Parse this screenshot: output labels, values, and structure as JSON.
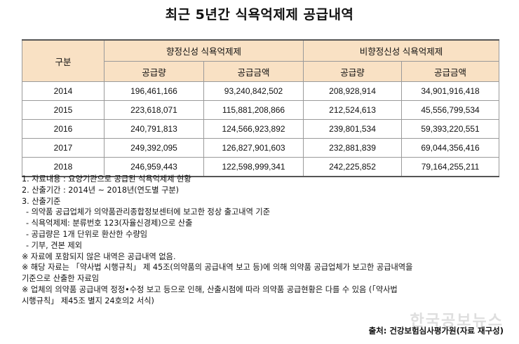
{
  "title": "최근 5년간 식욕억제제 공급내역",
  "table": {
    "col_gubun": "구분",
    "group1": "향정신성 식욕억제제",
    "group2": "비향정신성 식욕억제제",
    "sub_qty": "공급량",
    "sub_amount": "공급금액",
    "rows": [
      {
        "year": "2014",
        "psy_qty": "196,461,166",
        "psy_amt": "93,240,842,502",
        "non_qty": "208,928,914",
        "non_amt": "34,901,916,418"
      },
      {
        "year": "2015",
        "psy_qty": "223,618,071",
        "psy_amt": "115,881,208,866",
        "non_qty": "212,524,613",
        "non_amt": "45,556,799,534"
      },
      {
        "year": "2016",
        "psy_qty": "240,791,813",
        "psy_amt": "124,566,923,892",
        "non_qty": "239,801,534",
        "non_amt": "59,393,220,551"
      },
      {
        "year": "2017",
        "psy_qty": "249,392,095",
        "psy_amt": "126,827,901,603",
        "non_qty": "232,881,839",
        "non_amt": "69,044,356,416"
      },
      {
        "year": "2018",
        "psy_qty": "246,959,443",
        "psy_amt": "122,598,999,341",
        "non_qty": "242,225,852",
        "non_amt": "79,164,255,211"
      }
    ]
  },
  "notes": [
    "1. 자료내용 : 요양기관으로 공급된 식욕억제제 현황",
    "2. 산출기간 : 2014년 ~ 2018년(연도별 구분)",
    "3. 산출기준",
    "- 의약품 공급업체가 의약품관리종합정보센터에 보고한 정상 출고내역 기준",
    "- 식욕억제제: 분류번호 123(자율신경제)으로 산출",
    "- 공급량은 1개 단위로 환산한 수량임",
    "- 기부, 견본 제외",
    "※ 자료에 포함되지 않은 내역은 공급내역 없음.",
    "※ 해당 자료는 「약사법 시행규칙」 제 45조(의약품의 공급내역 보고 등)에 의해 의약품 공급업체가 보고한 공급내역을",
    "기준으로 산출한 자료임",
    "※ 업체의 의약품 공급내역 정정•수정 보고 등으로 인해, 산출시점에 따라 의약품 공급현황은 다를 수 있음 (「약사법",
    "시행규칙」 제45조 별지 24호의2 서식)"
  ],
  "watermark": "한국공보뉴스",
  "source": "출처: 건강보험심사평가원(자료 재구성)"
}
